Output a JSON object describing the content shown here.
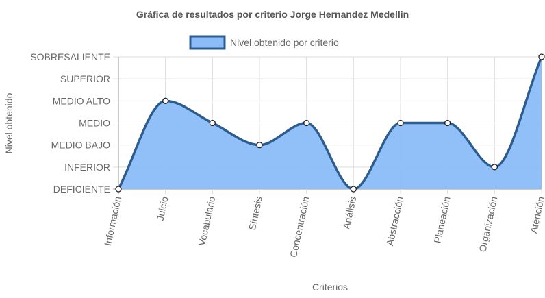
{
  "chart_data": {
    "type": "area",
    "title": "Gráfica de resultados por criterio Jorge Hernandez Medellin",
    "xlabel": "Criterios",
    "ylabel": "Nivel obtenido",
    "categories": [
      "Información",
      "Juicio",
      "Vocabulario",
      "Síntesis",
      "Concentración",
      "Análisis",
      "Abstracción",
      "Planeación",
      "Organización",
      "Atención"
    ],
    "y_levels": [
      "DEFICIENTE",
      "INFERIOR",
      "MEDIO BAJO",
      "MEDIO",
      "MEDIO ALTO",
      "SUPERIOR",
      "SOBRESALIENTE"
    ],
    "series": [
      {
        "name": "Nivel obtenido por criterio",
        "values": [
          0,
          4,
          3,
          2,
          3,
          0,
          3,
          3,
          1,
          6
        ],
        "labels": [
          "DEFICIENTE",
          "MEDIO ALTO",
          "MEDIO",
          "MEDIO BAJO",
          "MEDIO",
          "DEFICIENTE",
          "MEDIO",
          "MEDIO",
          "INFERIOR",
          "SOBRESALIENTE"
        ]
      }
    ],
    "ylim": [
      0,
      6
    ],
    "grid": true,
    "legend": "top-center",
    "colors": {
      "fill": "#8bbcf7",
      "line": "#2d5c8e",
      "point_fill": "#ffffff",
      "point_stroke": "#222222",
      "grid": "#dddddd",
      "axis": "#999999"
    }
  }
}
